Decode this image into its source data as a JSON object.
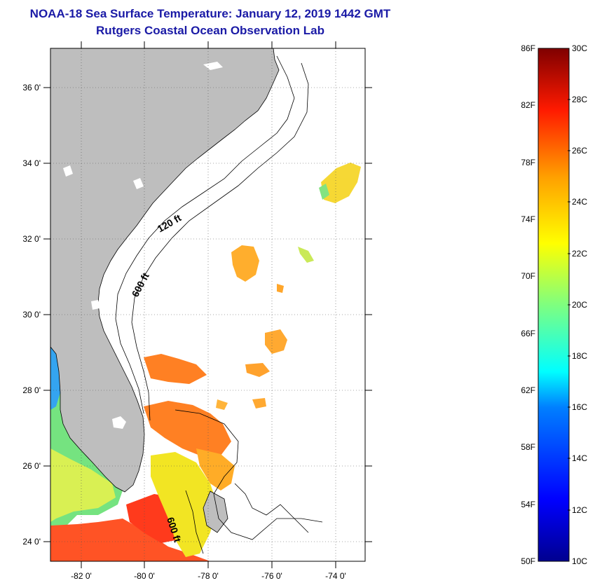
{
  "title": "NOAA-18 Sea Surface Temperature:  January 12, 2019 1442 GMT",
  "subtitle": "Rutgers Coastal Ocean Observation Lab",
  "map": {
    "lat_ticks": [
      {
        "value": 36,
        "label": "36 0'"
      },
      {
        "value": 34,
        "label": "34 0'"
      },
      {
        "value": 32,
        "label": "32 0'"
      },
      {
        "value": 30,
        "label": "30 0'"
      },
      {
        "value": 28,
        "label": "28 0'"
      },
      {
        "value": 26,
        "label": "26 0'"
      },
      {
        "value": 24,
        "label": "24 0'"
      }
    ],
    "lon_ticks": [
      {
        "value": -82,
        "label": "-82 0'"
      },
      {
        "value": -80,
        "label": "-80 0'"
      },
      {
        "value": -78,
        "label": "-78 0'"
      },
      {
        "value": -76,
        "label": "-76 0'"
      },
      {
        "value": -74,
        "label": "-74 0'"
      }
    ],
    "lat_range": [
      23.0,
      37.0
    ],
    "lon_range": [
      -83.0,
      -73.0
    ],
    "contour_labels": [
      {
        "text": "120 ft"
      },
      {
        "text": "600 ft"
      },
      {
        "text": "600 ft"
      }
    ],
    "land_color": "#bebebe"
  },
  "colorbar": {
    "fahrenheit_labels": [
      "86F",
      "82F",
      "78F",
      "74F",
      "70F",
      "66F",
      "62F",
      "58F",
      "54F",
      "50F"
    ],
    "celsius_labels": [
      "30C",
      "28C",
      "26C",
      "24C",
      "22C",
      "20C",
      "18C",
      "16C",
      "14C",
      "12C",
      "10C"
    ],
    "range_c": [
      10,
      30
    ],
    "stops": [
      "#00008f",
      "#0000ff",
      "#007fff",
      "#00ffff",
      "#7fff7f",
      "#ffff00",
      "#ff7f00",
      "#ff0000",
      "#7f0000"
    ]
  }
}
